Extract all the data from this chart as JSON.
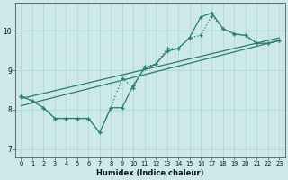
{
  "xlabel": "Humidex (Indice chaleur)",
  "xlim": [
    -0.5,
    23.5
  ],
  "ylim": [
    6.8,
    10.7
  ],
  "xticks": [
    0,
    1,
    2,
    3,
    4,
    5,
    6,
    7,
    8,
    9,
    10,
    11,
    12,
    13,
    14,
    15,
    16,
    17,
    18,
    19,
    20,
    21,
    22,
    23
  ],
  "yticks": [
    7,
    8,
    9,
    10
  ],
  "background_color": "#cce8e8",
  "grid_color": "#b0d8d8",
  "line_color": "#2a7d6e",
  "line1_x": [
    0,
    1,
    2,
    3,
    4,
    5,
    6,
    7,
    8,
    9,
    10,
    11,
    12,
    13,
    14,
    15,
    16,
    17,
    18,
    19,
    20,
    21,
    22,
    23
  ],
  "line1_y": [
    8.35,
    8.22,
    8.05,
    7.78,
    7.78,
    7.78,
    7.78,
    7.42,
    8.05,
    8.05,
    8.62,
    9.05,
    9.15,
    9.48,
    9.55,
    9.82,
    10.35,
    10.45,
    10.05,
    9.92,
    9.88,
    9.68,
    9.68,
    9.75
  ],
  "line2_x": [
    0,
    1,
    2,
    3,
    4,
    5,
    6,
    7,
    8,
    9,
    10,
    11,
    12,
    13,
    14,
    15,
    16,
    17,
    18,
    19,
    20,
    21,
    22,
    23
  ],
  "line2_y": [
    8.35,
    8.22,
    8.05,
    7.78,
    7.78,
    7.78,
    7.78,
    7.42,
    8.05,
    8.8,
    8.55,
    9.1,
    9.15,
    9.55,
    9.55,
    9.82,
    9.88,
    10.38,
    10.05,
    9.92,
    9.88,
    9.68,
    9.68,
    9.75
  ],
  "line3_x": [
    0,
    23
  ],
  "line3_y": [
    8.28,
    9.82
  ],
  "line4_x": [
    0,
    23
  ],
  "line4_y": [
    8.1,
    9.75
  ]
}
